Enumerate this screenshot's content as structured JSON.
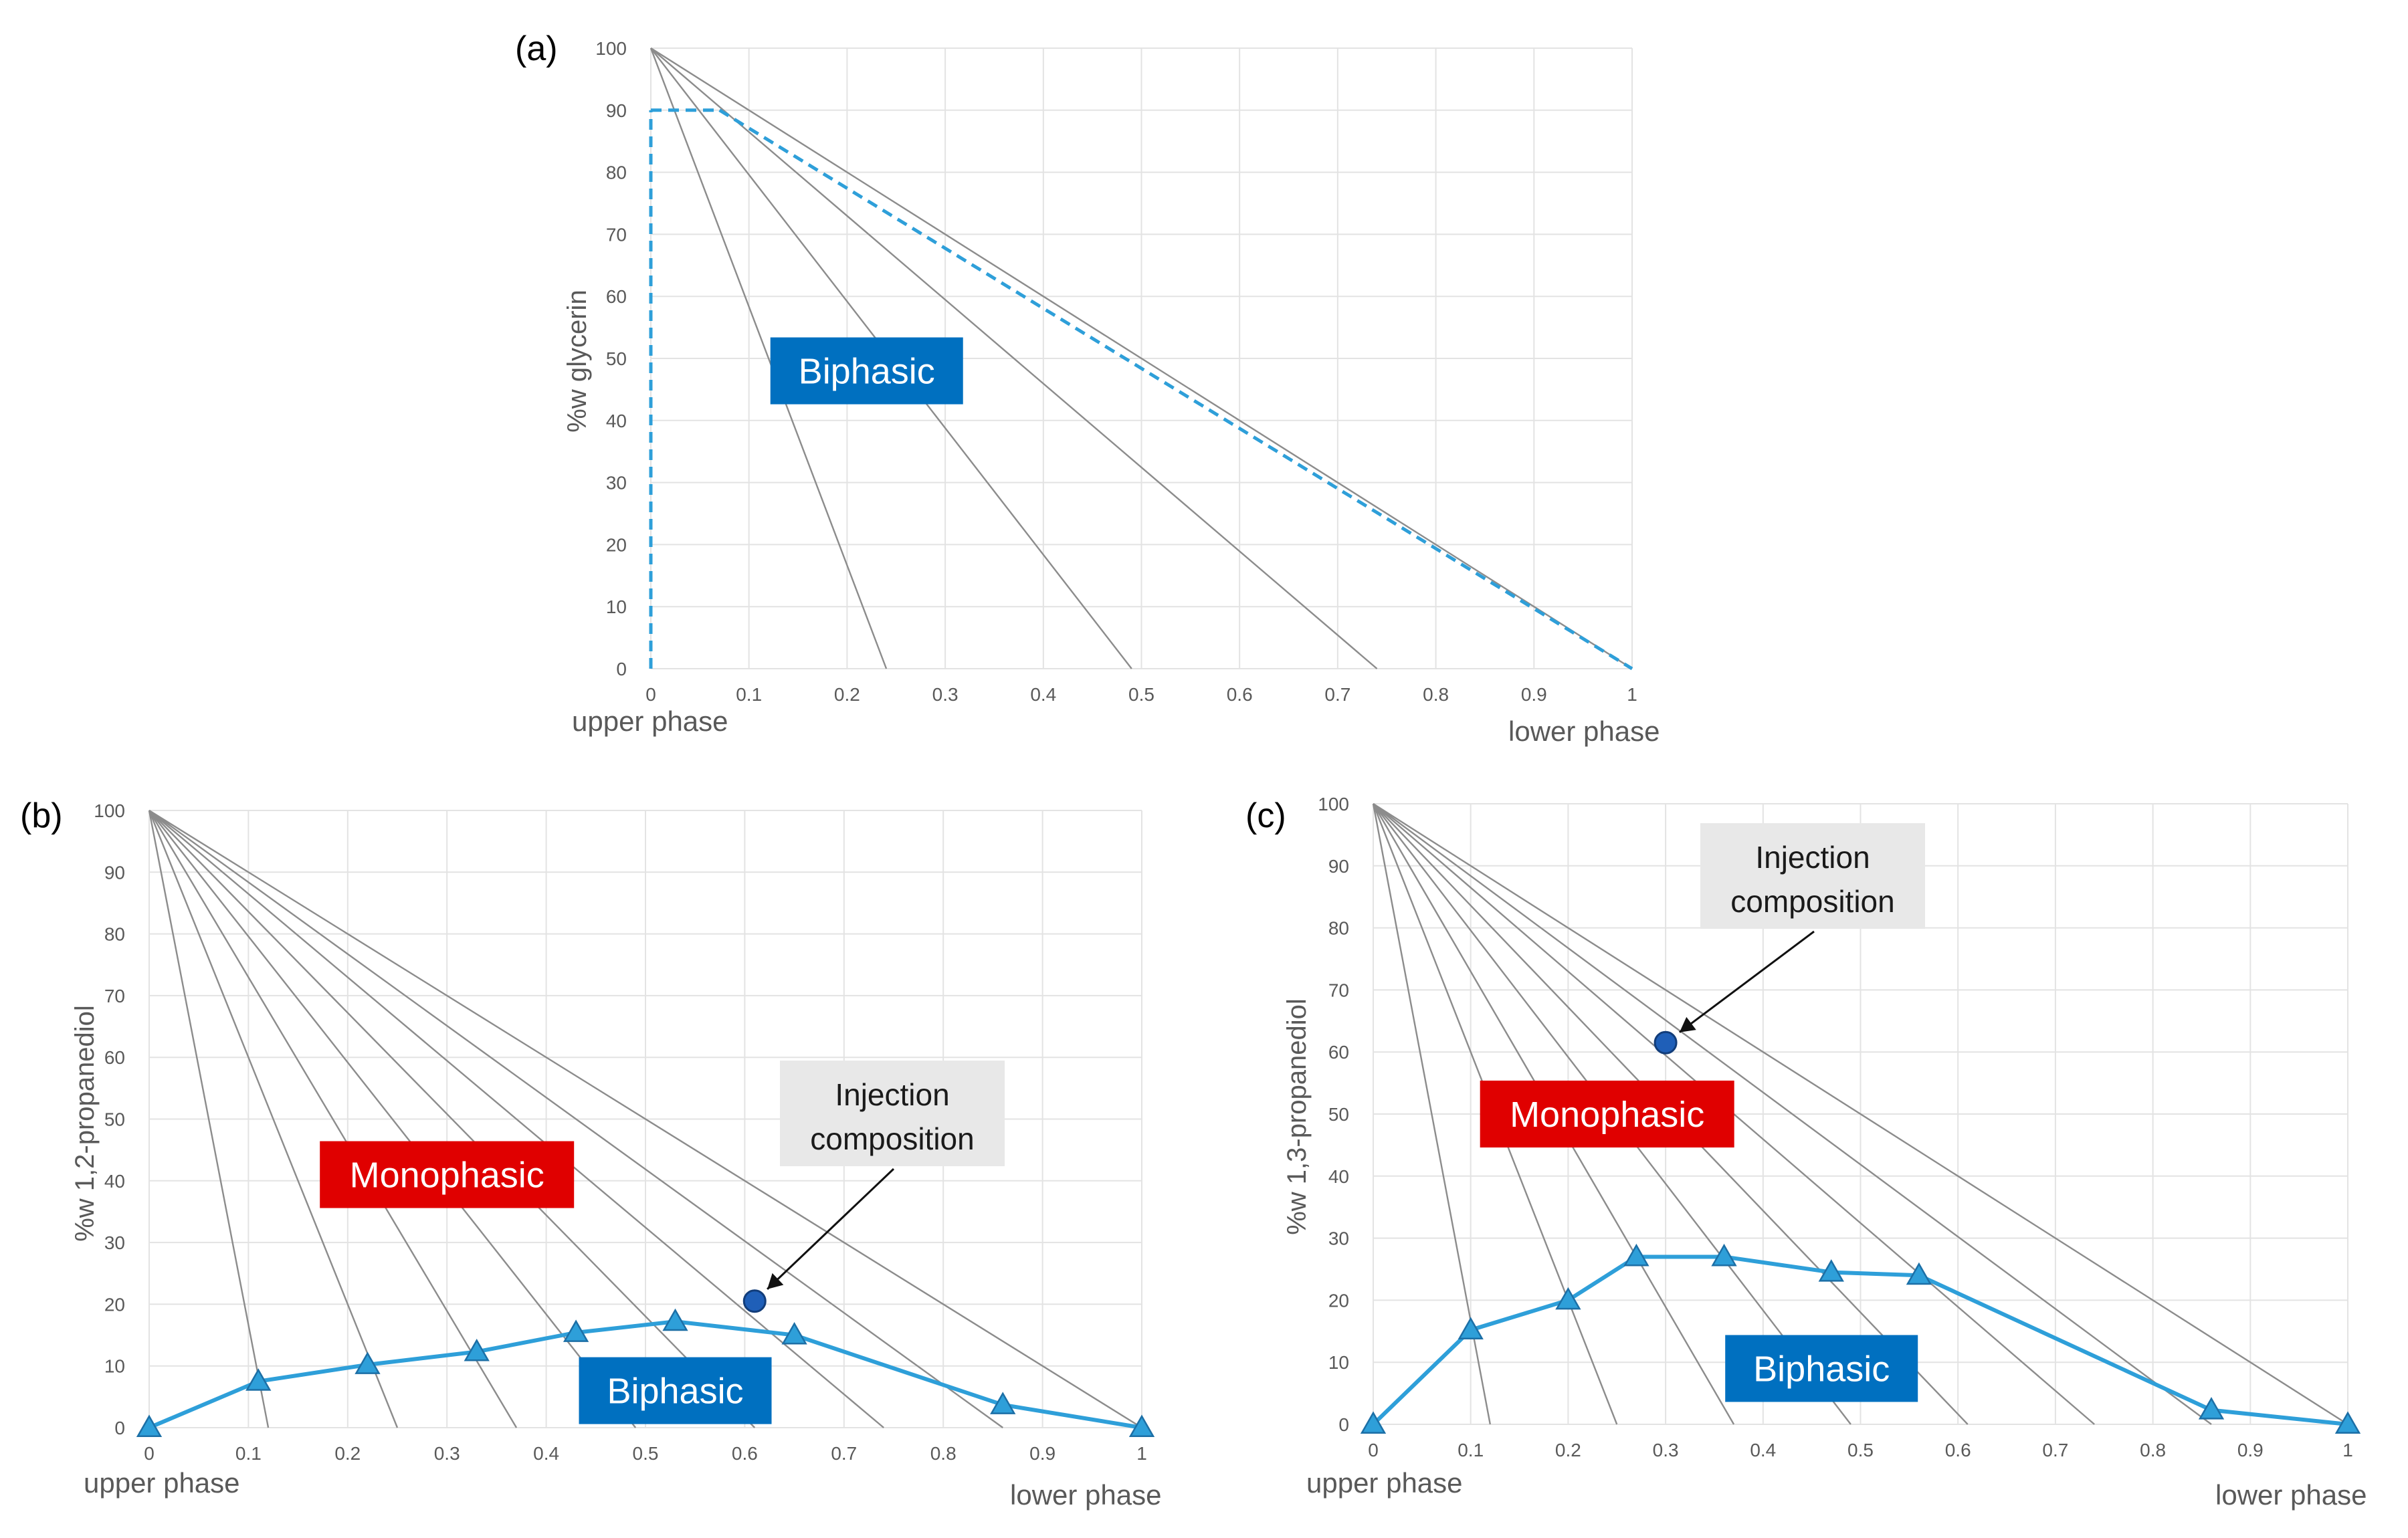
{
  "panels": [
    {
      "id": "a",
      "label": "(a)",
      "ylabel": "%w glycerin",
      "x_left_label": "upper phase",
      "x_right_label": "lower phase",
      "chart_data": {
        "type": "line",
        "x_ticks": [
          "0",
          "0.1",
          "0.2",
          "0.3",
          "0.4",
          "0.5",
          "0.6",
          "0.7",
          "0.8",
          "0.9",
          "1"
        ],
        "y_ticks": [
          "0",
          "10",
          "20",
          "30",
          "40",
          "50",
          "60",
          "70",
          "80",
          "90",
          "100"
        ],
        "xlim": [
          0,
          1
        ],
        "ylim": [
          0,
          100
        ],
        "tie_lines": [
          {
            "from": [
              0,
              100
            ],
            "to": [
              0.24,
              0
            ]
          },
          {
            "from": [
              0,
              100
            ],
            "to": [
              0.49,
              0
            ]
          },
          {
            "from": [
              0,
              100
            ],
            "to": [
              0.74,
              0
            ]
          },
          {
            "from": [
              0,
              100
            ],
            "to": [
              1,
              0
            ]
          }
        ],
        "dashed_series": [
          {
            "name": "boundary-vertical",
            "x": [
              0,
              0
            ],
            "y": [
              0,
              90
            ]
          },
          {
            "name": "boundary-horizontal",
            "x": [
              0,
              0.07
            ],
            "y": [
              90,
              90
            ]
          },
          {
            "name": "boundary-diagonal",
            "x": [
              0.07,
              1
            ],
            "y": [
              90,
              0
            ]
          }
        ],
        "regions": [
          {
            "text": "Biphasic",
            "color": "#0070c0",
            "x": 0.22,
            "y": 48
          }
        ]
      }
    },
    {
      "id": "b",
      "label": "(b)",
      "ylabel": "%w 1,2-propanediol",
      "x_left_label": "upper phase",
      "x_right_label": "lower phase",
      "chart_data": {
        "type": "line",
        "x_ticks": [
          "0",
          "0.1",
          "0.2",
          "0.3",
          "0.4",
          "0.5",
          "0.6",
          "0.7",
          "0.8",
          "0.9",
          "1"
        ],
        "y_ticks": [
          "0",
          "10",
          "20",
          "30",
          "40",
          "50",
          "60",
          "70",
          "80",
          "90",
          "100"
        ],
        "xlim": [
          0,
          1
        ],
        "ylim": [
          0,
          100
        ],
        "tie_lines": [
          {
            "from": [
              0,
              100
            ],
            "to": [
              0.12,
              0
            ]
          },
          {
            "from": [
              0,
              100
            ],
            "to": [
              0.25,
              0
            ]
          },
          {
            "from": [
              0,
              100
            ],
            "to": [
              0.37,
              0
            ]
          },
          {
            "from": [
              0,
              100
            ],
            "to": [
              0.49,
              0
            ]
          },
          {
            "from": [
              0,
              100
            ],
            "to": [
              0.61,
              0
            ]
          },
          {
            "from": [
              0,
              100
            ],
            "to": [
              0.74,
              0
            ]
          },
          {
            "from": [
              0,
              100
            ],
            "to": [
              0.86,
              0
            ]
          },
          {
            "from": [
              0,
              100
            ],
            "to": [
              1,
              0
            ]
          }
        ],
        "series": [
          {
            "name": "binodal",
            "x": [
              0,
              0.11,
              0.22,
              0.33,
              0.43,
              0.53,
              0.65,
              0.86,
              1.0
            ],
            "y": [
              0,
              7.5,
              10.2,
              12.3,
              15.4,
              17.2,
              15.0,
              3.7,
              0
            ]
          }
        ],
        "injection_point": {
          "x": 0.61,
          "y": 20.5
        },
        "injection_text": [
          "Injection",
          "composition"
        ],
        "regions": [
          {
            "text": "Monophasic",
            "color": "#e00000",
            "x": 0.3,
            "y": 41
          },
          {
            "text": "Biphasic",
            "color": "#0070c0",
            "x": 0.53,
            "y": 6
          }
        ]
      }
    },
    {
      "id": "c",
      "label": "(c)",
      "ylabel": "%w 1,3-propanediol",
      "x_left_label": "upper phase",
      "x_right_label": "lower phase",
      "chart_data": {
        "type": "line",
        "x_ticks": [
          "0",
          "0.1",
          "0.2",
          "0.3",
          "0.4",
          "0.5",
          "0.6",
          "0.7",
          "0.8",
          "0.9",
          "1"
        ],
        "y_ticks": [
          "0",
          "10",
          "20",
          "30",
          "40",
          "50",
          "60",
          "70",
          "80",
          "90",
          "100"
        ],
        "xlim": [
          0,
          1
        ],
        "ylim": [
          0,
          100
        ],
        "tie_lines": [
          {
            "from": [
              0,
              100
            ],
            "to": [
              0.12,
              0
            ]
          },
          {
            "from": [
              0,
              100
            ],
            "to": [
              0.25,
              0
            ]
          },
          {
            "from": [
              0,
              100
            ],
            "to": [
              0.37,
              0
            ]
          },
          {
            "from": [
              0,
              100
            ],
            "to": [
              0.49,
              0
            ]
          },
          {
            "from": [
              0,
              100
            ],
            "to": [
              0.61,
              0
            ]
          },
          {
            "from": [
              0,
              100
            ],
            "to": [
              0.74,
              0
            ]
          },
          {
            "from": [
              0,
              100
            ],
            "to": [
              0.86,
              0
            ]
          },
          {
            "from": [
              0,
              100
            ],
            "to": [
              1,
              0
            ]
          }
        ],
        "series": [
          {
            "name": "binodal",
            "x": [
              0,
              0.1,
              0.2,
              0.27,
              0.36,
              0.47,
              0.56,
              0.86,
              1.0
            ],
            "y": [
              0,
              15.2,
              20.0,
              27.0,
              27.0,
              24.5,
              24.0,
              2.3,
              0
            ]
          }
        ],
        "injection_point": {
          "x": 0.3,
          "y": 61.5
        },
        "injection_text": [
          "Injection",
          "composition"
        ],
        "regions": [
          {
            "text": "Monophasic",
            "color": "#e00000",
            "x": 0.24,
            "y": 50
          },
          {
            "text": "Biphasic",
            "color": "#0070c0",
            "x": 0.46,
            "y": 9
          }
        ]
      }
    }
  ]
}
